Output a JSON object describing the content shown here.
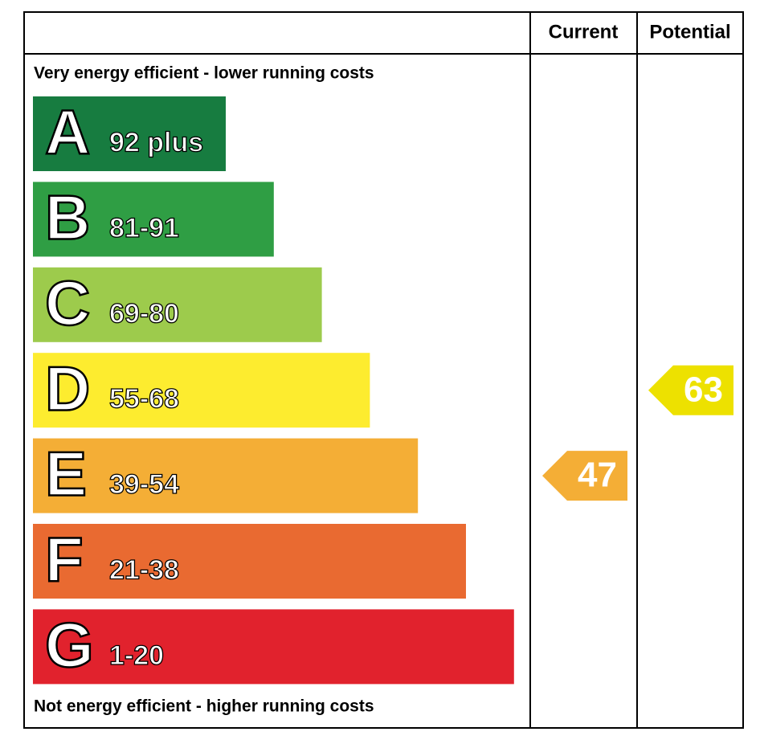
{
  "header": {
    "current": "Current",
    "potential": "Potential"
  },
  "top_note": "Very energy efficient - lower running costs",
  "bottom_note": "Not energy efficient - higher running costs",
  "bands": [
    {
      "letter": "A",
      "range": "92 plus",
      "color": "#177c40"
    },
    {
      "letter": "B",
      "range": "81-91",
      "color": "#2f9e44"
    },
    {
      "letter": "C",
      "range": "69-80",
      "color": "#9dcb4c"
    },
    {
      "letter": "D",
      "range": "55-68",
      "color": "#fdec2f"
    },
    {
      "letter": "E",
      "range": "39-54",
      "color": "#f4ae36"
    },
    {
      "letter": "F",
      "range": "21-38",
      "color": "#e96a31"
    },
    {
      "letter": "G",
      "range": "1-20",
      "color": "#e1222d"
    }
  ],
  "current": {
    "value": 47,
    "color": "#f4ae36"
  },
  "potential": {
    "value": 63,
    "color": "#ede100"
  }
}
